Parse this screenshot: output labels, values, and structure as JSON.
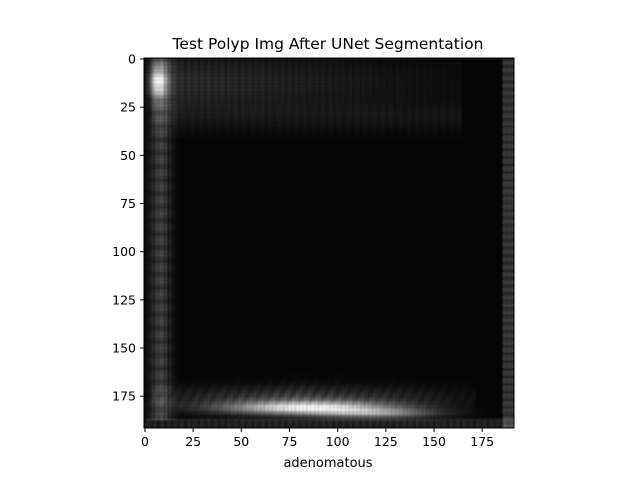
{
  "chart_data": {
    "type": "heatmap",
    "title": "Test Polyp Img After UNet Segmentation",
    "xlabel": "adenomatous",
    "ylabel": "",
    "image_size": [
      192,
      192
    ],
    "colormap": "gray",
    "xlim": [
      -0.5,
      191.5
    ],
    "ylim": [
      191.5,
      -0.5
    ],
    "xticks": [
      0,
      25,
      50,
      75,
      100,
      125,
      150,
      175
    ],
    "yticks": [
      0,
      25,
      50,
      75,
      100,
      125,
      150,
      175
    ],
    "grid": false,
    "description_of_values": [
      {
        "region": "left edge band",
        "cols": [
          3,
          18
        ],
        "rows": [
          5,
          185
        ],
        "intensity": 0.35
      },
      {
        "region": "top-left corner",
        "cols": [
          3,
          12
        ],
        "rows": [
          3,
          25
        ],
        "intensity": 0.8
      },
      {
        "region": "top band",
        "cols": [
          5,
          160
        ],
        "rows": [
          3,
          40
        ],
        "intensity": 0.25
      },
      {
        "region": "bottom bright band",
        "cols": [
          40,
          150
        ],
        "rows": [
          174,
          187
        ],
        "intensity": 0.95
      },
      {
        "region": "bottom band",
        "cols": [
          5,
          170
        ],
        "rows": [
          160,
          188
        ],
        "intensity": 0.4
      },
      {
        "region": "right edge",
        "cols": [
          185,
          191
        ],
        "rows": [
          0,
          191
        ],
        "intensity": 0.3
      }
    ]
  }
}
